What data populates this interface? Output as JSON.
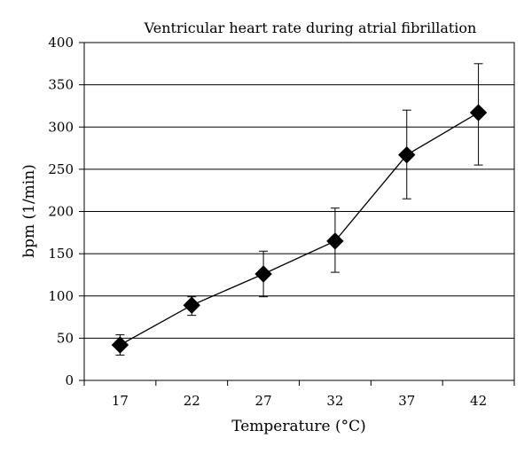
{
  "chart_data": {
    "type": "line",
    "title": "Ventricular heart rate during atrial fibrillation",
    "xlabel": "Temperature (°C)",
    "ylabel": "bpm (1/min)",
    "x": [
      17,
      22,
      27,
      32,
      37,
      42
    ],
    "series": [
      {
        "values": [
          42,
          89,
          126,
          165,
          267,
          317
        ],
        "error_low": [
          30,
          77,
          99,
          128,
          215,
          255
        ],
        "error_high": [
          54,
          99,
          153,
          204,
          320,
          375
        ],
        "marker": "diamond",
        "color": "#000000"
      }
    ],
    "ylim": [
      0,
      400
    ],
    "yticks": [
      0,
      50,
      100,
      150,
      200,
      250,
      300,
      350,
      400
    ],
    "grid": "horizontal",
    "legend": "none"
  }
}
